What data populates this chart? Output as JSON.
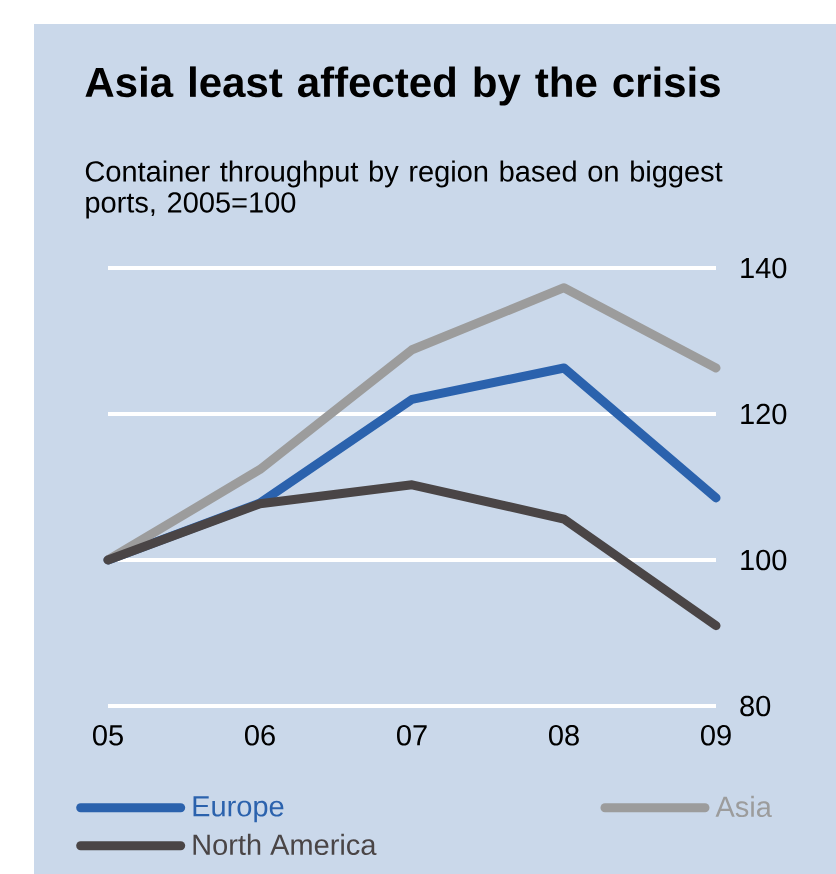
{
  "chart_data": {
    "type": "line",
    "title": "Asia least affected by the crisis",
    "subtitle": "Container throughput by region based on biggest ports, 2005=100",
    "categories": [
      "05",
      "06",
      "07",
      "08",
      "09"
    ],
    "series": [
      {
        "name": "Europe",
        "color": "#2b62ad",
        "values": [
          100,
          107.8,
          122,
          126.3,
          108.5
        ]
      },
      {
        "name": "Asia",
        "color": "#9c9c9c",
        "values": [
          100,
          112.4,
          128.8,
          137.3,
          126.3
        ]
      },
      {
        "name": "North America",
        "color": "#4a4546",
        "values": [
          100,
          107.7,
          110.3,
          105.6,
          91
        ]
      }
    ],
    "ylim": [
      80,
      140
    ],
    "yticks": [
      80,
      100,
      120,
      140
    ],
    "grid": "y",
    "legend": "bottom",
    "marker": "none",
    "line_style": "solid"
  }
}
